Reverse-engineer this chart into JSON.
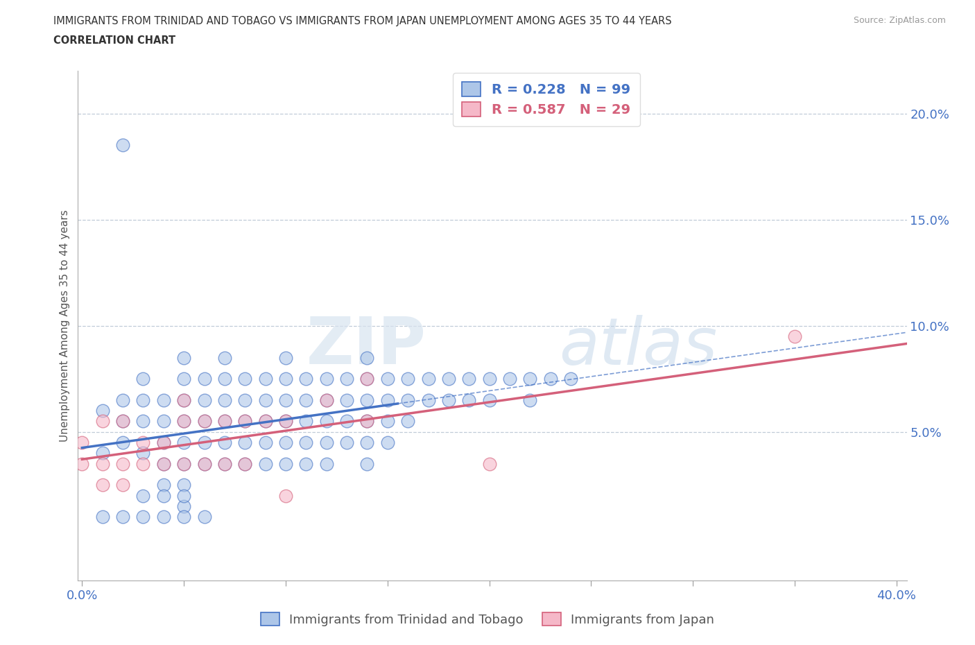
{
  "title_line1": "IMMIGRANTS FROM TRINIDAD AND TOBAGO VS IMMIGRANTS FROM JAPAN UNEMPLOYMENT AMONG AGES 35 TO 44 YEARS",
  "title_line2": "CORRELATION CHART",
  "source_text": "Source: ZipAtlas.com",
  "ylabel": "Unemployment Among Ages 35 to 44 years",
  "xlim": [
    -0.002,
    0.405
  ],
  "ylim": [
    -0.02,
    0.22
  ],
  "xticks": [
    0.0,
    0.05,
    0.1,
    0.15,
    0.2,
    0.25,
    0.3,
    0.35,
    0.4
  ],
  "yticks_right": [
    0.0,
    0.05,
    0.1,
    0.15,
    0.2
  ],
  "ytick_labels_right": [
    "",
    "5.0%",
    "10.0%",
    "15.0%",
    "20.0%"
  ],
  "trinidad_R": 0.228,
  "trinidad_N": 99,
  "japan_R": 0.587,
  "japan_N": 29,
  "trinidad_color": "#adc6e8",
  "japan_color": "#f5b8c8",
  "trinidad_line_color": "#4472c4",
  "japan_line_color": "#d4607a",
  "watermark_zip": "ZIP",
  "watermark_atlas": "atlas",
  "legend_label_trinidad": "Immigrants from Trinidad and Tobago",
  "legend_label_japan": "Immigrants from Japan",
  "trinidad_x": [
    0.02,
    0.01,
    0.01,
    0.02,
    0.02,
    0.02,
    0.03,
    0.03,
    0.03,
    0.03,
    0.04,
    0.04,
    0.04,
    0.04,
    0.04,
    0.05,
    0.05,
    0.05,
    0.05,
    0.05,
    0.05,
    0.05,
    0.05,
    0.06,
    0.06,
    0.06,
    0.06,
    0.06,
    0.07,
    0.07,
    0.07,
    0.07,
    0.07,
    0.07,
    0.08,
    0.08,
    0.08,
    0.08,
    0.08,
    0.09,
    0.09,
    0.09,
    0.09,
    0.09,
    0.1,
    0.1,
    0.1,
    0.1,
    0.1,
    0.1,
    0.11,
    0.11,
    0.11,
    0.11,
    0.11,
    0.12,
    0.12,
    0.12,
    0.12,
    0.12,
    0.13,
    0.13,
    0.13,
    0.13,
    0.14,
    0.14,
    0.14,
    0.14,
    0.14,
    0.14,
    0.15,
    0.15,
    0.15,
    0.15,
    0.16,
    0.16,
    0.16,
    0.17,
    0.17,
    0.18,
    0.18,
    0.19,
    0.19,
    0.2,
    0.2,
    0.21,
    0.22,
    0.22,
    0.23,
    0.24,
    0.01,
    0.02,
    0.03,
    0.03,
    0.04,
    0.04,
    0.05,
    0.05,
    0.06
  ],
  "trinidad_y": [
    0.185,
    0.06,
    0.04,
    0.065,
    0.055,
    0.045,
    0.075,
    0.065,
    0.055,
    0.04,
    0.065,
    0.055,
    0.045,
    0.035,
    0.025,
    0.085,
    0.075,
    0.065,
    0.055,
    0.045,
    0.035,
    0.025,
    0.015,
    0.075,
    0.065,
    0.055,
    0.045,
    0.035,
    0.085,
    0.075,
    0.065,
    0.055,
    0.045,
    0.035,
    0.075,
    0.065,
    0.055,
    0.045,
    0.035,
    0.075,
    0.065,
    0.055,
    0.045,
    0.035,
    0.085,
    0.075,
    0.065,
    0.055,
    0.045,
    0.035,
    0.075,
    0.065,
    0.055,
    0.045,
    0.035,
    0.075,
    0.065,
    0.055,
    0.045,
    0.035,
    0.075,
    0.065,
    0.055,
    0.045,
    0.085,
    0.075,
    0.065,
    0.055,
    0.045,
    0.035,
    0.075,
    0.065,
    0.055,
    0.045,
    0.075,
    0.065,
    0.055,
    0.075,
    0.065,
    0.075,
    0.065,
    0.075,
    0.065,
    0.075,
    0.065,
    0.075,
    0.075,
    0.065,
    0.075,
    0.075,
    0.01,
    0.01,
    0.01,
    0.02,
    0.01,
    0.02,
    0.01,
    0.02,
    0.01
  ],
  "japan_x": [
    0.0,
    0.0,
    0.01,
    0.01,
    0.01,
    0.02,
    0.02,
    0.02,
    0.03,
    0.03,
    0.04,
    0.04,
    0.05,
    0.05,
    0.05,
    0.06,
    0.06,
    0.07,
    0.07,
    0.08,
    0.08,
    0.09,
    0.1,
    0.12,
    0.14,
    0.14,
    0.2,
    0.35,
    0.1
  ],
  "japan_y": [
    0.045,
    0.035,
    0.055,
    0.035,
    0.025,
    0.055,
    0.035,
    0.025,
    0.045,
    0.035,
    0.045,
    0.035,
    0.065,
    0.055,
    0.035,
    0.055,
    0.035,
    0.055,
    0.035,
    0.055,
    0.035,
    0.055,
    0.055,
    0.065,
    0.055,
    0.075,
    0.035,
    0.095,
    0.02
  ]
}
